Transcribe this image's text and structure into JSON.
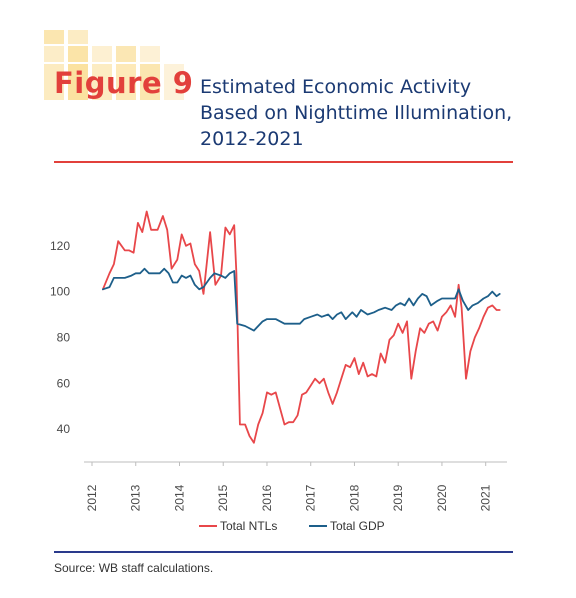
{
  "header": {
    "figure_label": "Figure 9",
    "title": "Estimated Economic Activity Based on Nighttime Illumination, 2012-2021"
  },
  "source": "Source: WB staff calculations.",
  "colors": {
    "ntl": "#e8474a",
    "gdp": "#1d5f8a",
    "accent": "#e2403b",
    "title": "#1b3a73",
    "tile": "#fbe6b0"
  },
  "chart_data": {
    "type": "line",
    "title": "Estimated Economic Activity Based on Nighttime Illumination, 2012-2021",
    "xlabel": "",
    "ylabel": "",
    "ylim": [
      30,
      140
    ],
    "xlim": [
      2012.0,
      2021.35
    ],
    "y_ticks": [
      40,
      60,
      80,
      100,
      120
    ],
    "x_tick_labels": [
      "2012",
      "2013",
      "2014",
      "2015",
      "2016",
      "2017",
      "2018",
      "2019",
      "2020",
      "2021"
    ],
    "grid": false,
    "legend_position": "bottom",
    "series": [
      {
        "name": "Total NTLs",
        "color": "#e8474a",
        "points": [
          [
            2012.25,
            101
          ],
          [
            2012.4,
            108
          ],
          [
            2012.5,
            112
          ],
          [
            2012.6,
            122
          ],
          [
            2012.75,
            118
          ],
          [
            2012.85,
            118
          ],
          [
            2012.95,
            117
          ],
          [
            2013.05,
            130
          ],
          [
            2013.15,
            126
          ],
          [
            2013.25,
            135
          ],
          [
            2013.35,
            127
          ],
          [
            2013.5,
            127
          ],
          [
            2013.62,
            133
          ],
          [
            2013.72,
            127
          ],
          [
            2013.82,
            110
          ],
          [
            2013.95,
            114
          ],
          [
            2014.05,
            125
          ],
          [
            2014.15,
            120
          ],
          [
            2014.25,
            121
          ],
          [
            2014.35,
            112
          ],
          [
            2014.45,
            109
          ],
          [
            2014.55,
            99
          ],
          [
            2014.7,
            126
          ],
          [
            2014.82,
            103
          ],
          [
            2014.95,
            107
          ],
          [
            2015.05,
            128
          ],
          [
            2015.15,
            125
          ],
          [
            2015.25,
            129
          ],
          [
            2015.3,
            108
          ],
          [
            2015.38,
            42
          ],
          [
            2015.5,
            42
          ],
          [
            2015.6,
            37
          ],
          [
            2015.7,
            34
          ],
          [
            2015.8,
            42
          ],
          [
            2015.9,
            47
          ],
          [
            2016.0,
            56
          ],
          [
            2016.1,
            55
          ],
          [
            2016.2,
            56
          ],
          [
            2016.3,
            49
          ],
          [
            2016.4,
            42
          ],
          [
            2016.5,
            43
          ],
          [
            2016.6,
            43
          ],
          [
            2016.7,
            46
          ],
          [
            2016.8,
            55
          ],
          [
            2016.9,
            56
          ],
          [
            2017.0,
            59
          ],
          [
            2017.1,
            62
          ],
          [
            2017.2,
            60
          ],
          [
            2017.3,
            62
          ],
          [
            2017.4,
            56
          ],
          [
            2017.5,
            51
          ],
          [
            2017.6,
            56
          ],
          [
            2017.7,
            62
          ],
          [
            2017.8,
            68
          ],
          [
            2017.9,
            67
          ],
          [
            2018.0,
            71
          ],
          [
            2018.1,
            64
          ],
          [
            2018.2,
            69
          ],
          [
            2018.3,
            63
          ],
          [
            2018.4,
            64
          ],
          [
            2018.5,
            63
          ],
          [
            2018.6,
            73
          ],
          [
            2018.7,
            69
          ],
          [
            2018.8,
            79
          ],
          [
            2018.9,
            81
          ],
          [
            2019.0,
            86
          ],
          [
            2019.1,
            82
          ],
          [
            2019.2,
            87
          ],
          [
            2019.3,
            62
          ],
          [
            2019.4,
            74
          ],
          [
            2019.5,
            84
          ],
          [
            2019.6,
            82
          ],
          [
            2019.7,
            86
          ],
          [
            2019.8,
            87
          ],
          [
            2019.9,
            83
          ],
          [
            2020.0,
            89
          ],
          [
            2020.1,
            91
          ],
          [
            2020.2,
            94
          ],
          [
            2020.3,
            89
          ],
          [
            2020.38,
            103
          ],
          [
            2020.45,
            93
          ],
          [
            2020.55,
            62
          ],
          [
            2020.65,
            74
          ],
          [
            2020.75,
            80
          ],
          [
            2020.85,
            84
          ],
          [
            2020.95,
            89
          ],
          [
            2021.05,
            93
          ],
          [
            2021.15,
            94
          ],
          [
            2021.25,
            92
          ],
          [
            2021.32,
            92
          ]
        ]
      },
      {
        "name": "Total GDP",
        "color": "#1d5f8a",
        "points": [
          [
            2012.25,
            101
          ],
          [
            2012.4,
            102
          ],
          [
            2012.5,
            106
          ],
          [
            2012.62,
            106
          ],
          [
            2012.75,
            106
          ],
          [
            2012.9,
            107
          ],
          [
            2013.0,
            108
          ],
          [
            2013.1,
            108
          ],
          [
            2013.2,
            110
          ],
          [
            2013.3,
            108
          ],
          [
            2013.45,
            108
          ],
          [
            2013.55,
            108
          ],
          [
            2013.65,
            110
          ],
          [
            2013.75,
            108
          ],
          [
            2013.85,
            104
          ],
          [
            2013.95,
            104
          ],
          [
            2014.05,
            107
          ],
          [
            2014.15,
            106
          ],
          [
            2014.25,
            107
          ],
          [
            2014.35,
            103
          ],
          [
            2014.45,
            101
          ],
          [
            2014.55,
            102
          ],
          [
            2014.7,
            106
          ],
          [
            2014.8,
            108
          ],
          [
            2014.95,
            107
          ],
          [
            2015.05,
            106
          ],
          [
            2015.15,
            108
          ],
          [
            2015.25,
            109
          ],
          [
            2015.32,
            86
          ],
          [
            2015.5,
            85
          ],
          [
            2015.7,
            83
          ],
          [
            2015.9,
            87
          ],
          [
            2016.0,
            88
          ],
          [
            2016.2,
            88
          ],
          [
            2016.4,
            86
          ],
          [
            2016.55,
            86
          ],
          [
            2016.75,
            86
          ],
          [
            2016.85,
            88
          ],
          [
            2017.0,
            89
          ],
          [
            2017.15,
            90
          ],
          [
            2017.25,
            89
          ],
          [
            2017.4,
            90
          ],
          [
            2017.5,
            88
          ],
          [
            2017.6,
            90
          ],
          [
            2017.7,
            91
          ],
          [
            2017.8,
            88
          ],
          [
            2017.95,
            91
          ],
          [
            2018.05,
            89
          ],
          [
            2018.15,
            92
          ],
          [
            2018.3,
            90
          ],
          [
            2018.45,
            91
          ],
          [
            2018.55,
            92
          ],
          [
            2018.7,
            93
          ],
          [
            2018.85,
            92
          ],
          [
            2018.95,
            94
          ],
          [
            2019.05,
            95
          ],
          [
            2019.15,
            94
          ],
          [
            2019.25,
            97
          ],
          [
            2019.35,
            94
          ],
          [
            2019.45,
            97
          ],
          [
            2019.55,
            99
          ],
          [
            2019.65,
            98
          ],
          [
            2019.75,
            94
          ],
          [
            2019.9,
            96
          ],
          [
            2020.0,
            97
          ],
          [
            2020.1,
            97
          ],
          [
            2020.2,
            97
          ],
          [
            2020.3,
            97
          ],
          [
            2020.38,
            101
          ],
          [
            2020.48,
            96
          ],
          [
            2020.6,
            92
          ],
          [
            2020.7,
            94
          ],
          [
            2020.82,
            95
          ],
          [
            2020.95,
            97
          ],
          [
            2021.05,
            98
          ],
          [
            2021.15,
            100
          ],
          [
            2021.25,
            98
          ],
          [
            2021.32,
            99
          ]
        ]
      }
    ]
  }
}
